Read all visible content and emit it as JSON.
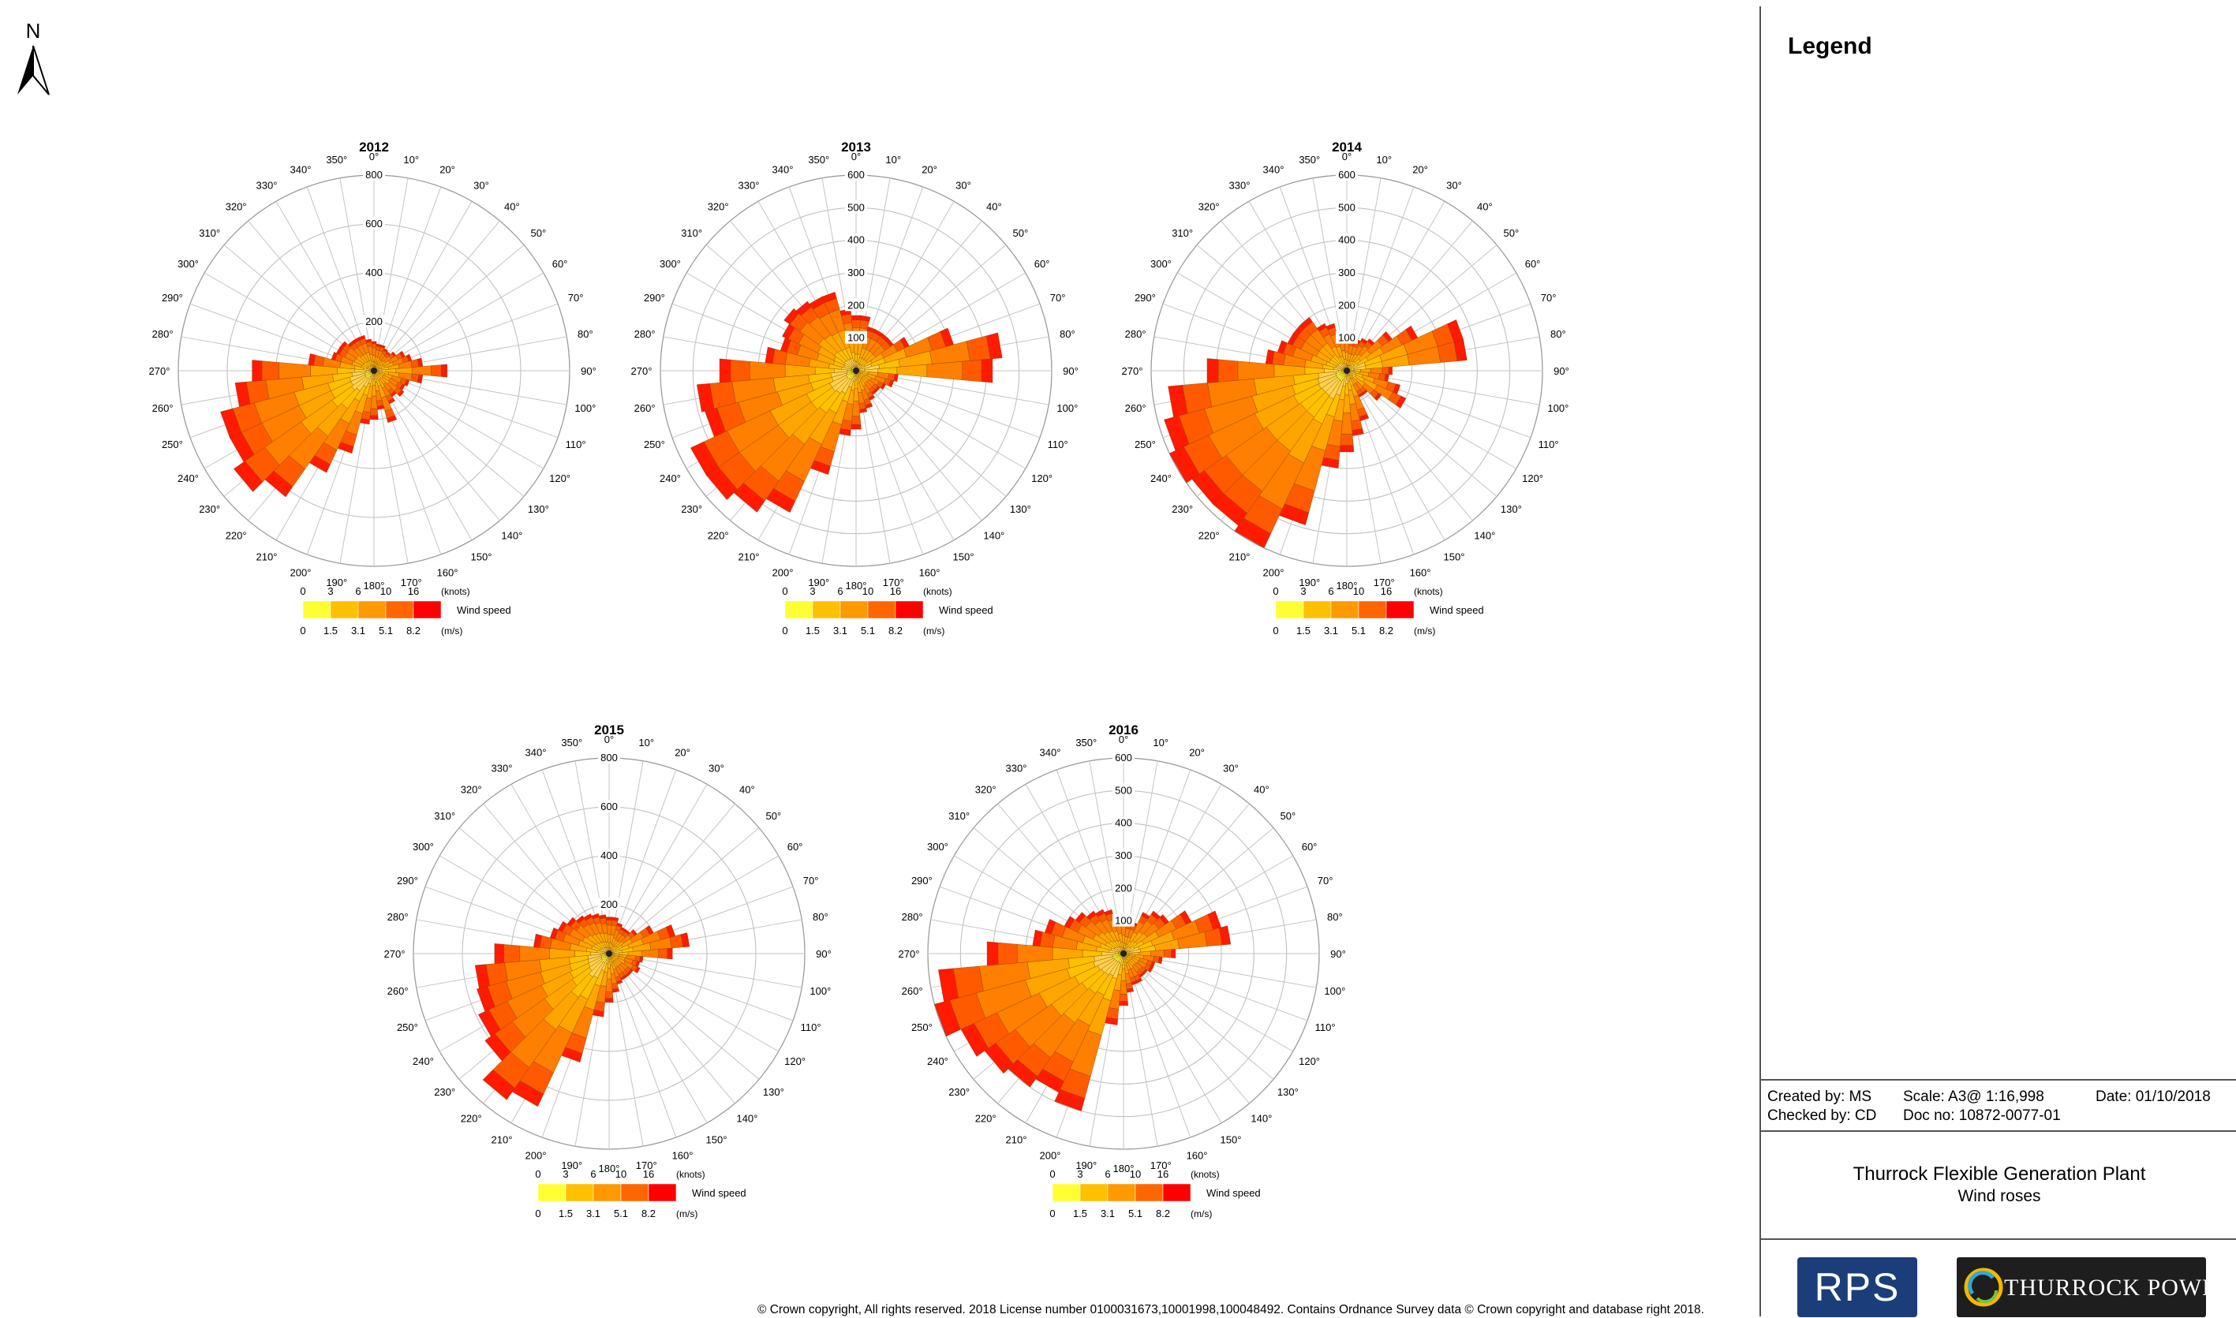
{
  "north_arrow": {
    "label": "N"
  },
  "legend": {
    "title": "Legend"
  },
  "info": {
    "created_by": "Created by: MS",
    "checked_by": "Checked by: CD",
    "scale": "Scale: A3@ 1:16,998",
    "doc_no": "Doc no: 10872-0077-01",
    "date": "Date: 01/10/2018"
  },
  "title_block": {
    "project": "Thurrock Flexible Generation Plant",
    "subtitle": "Wind roses"
  },
  "logos": {
    "rps": "RPS",
    "thurrock": "THURROCK POWER"
  },
  "copyright": "© Crown copyright, All rights reserved. 2018 License number 0100031673,10001998,100048492. Contains Ordnance Survey data © Crown copyright and database right 2018.",
  "wind_speed_legend": {
    "label": "Wind speed",
    "knots_ticks": [
      "0",
      "3",
      "6",
      "10",
      "16"
    ],
    "knots_unit": "(knots)",
    "ms_ticks": [
      "0",
      "1.5",
      "3.1",
      "5.1",
      "8.2"
    ],
    "ms_unit": "(m/s)",
    "colors": [
      "#ffff33",
      "#ffc000",
      "#ff9900",
      "#ff6600",
      "#ff0000"
    ]
  },
  "direction_labels": [
    "0°",
    "10°",
    "20°",
    "30°",
    "40°",
    "50°",
    "60°",
    "70°",
    "80°",
    "90°",
    "100°",
    "110°",
    "120°",
    "130°",
    "140°",
    "150°",
    "160°",
    "170°",
    "180°",
    "190°",
    "200°",
    "210°",
    "220°",
    "230°",
    "240°",
    "250°",
    "260°",
    "270°",
    "280°",
    "290°",
    "300°",
    "310°",
    "320°",
    "330°",
    "340°",
    "350°"
  ],
  "chart_data": [
    {
      "type": "wind-rose",
      "title": "2012",
      "rmax": 800,
      "ring_labels": [
        "200",
        "400",
        "600",
        "800"
      ],
      "directions_deg": [
        0,
        10,
        20,
        30,
        40,
        50,
        60,
        70,
        80,
        90,
        100,
        110,
        120,
        130,
        140,
        150,
        160,
        170,
        180,
        190,
        200,
        210,
        220,
        230,
        240,
        250,
        260,
        270,
        280,
        290,
        300,
        310,
        320,
        330,
        340,
        350
      ],
      "totals": [
        120,
        110,
        110,
        100,
        95,
        110,
        140,
        160,
        200,
        300,
        200,
        150,
        140,
        150,
        130,
        150,
        220,
        160,
        200,
        220,
        350,
        460,
        630,
        700,
        650,
        650,
        570,
        500,
        270,
        180,
        170,
        170,
        150,
        150,
        150,
        130
      ]
    },
    {
      "type": "wind-rose",
      "title": "2013",
      "rmax": 600,
      "ring_labels": [
        "100",
        "200",
        "300",
        "400",
        "500",
        "600"
      ],
      "directions_deg": [
        0,
        10,
        20,
        30,
        40,
        50,
        60,
        70,
        80,
        90,
        100,
        110,
        120,
        130,
        140,
        150,
        160,
        170,
        180,
        190,
        200,
        210,
        220,
        230,
        240,
        250,
        260,
        270,
        280,
        290,
        300,
        310,
        320,
        330,
        340,
        350
      ],
      "totals": [
        170,
        170,
        140,
        140,
        140,
        140,
        180,
        310,
        450,
        420,
        130,
        120,
        100,
        90,
        90,
        100,
        120,
        130,
        180,
        200,
        330,
        480,
        530,
        560,
        560,
        480,
        490,
        420,
        280,
        240,
        250,
        270,
        260,
        250,
        250,
        190
      ]
    },
    {
      "type": "wind-rose",
      "title": "2014",
      "rmax": 600,
      "ring_labels": [
        "100",
        "200",
        "300",
        "400",
        "500",
        "600"
      ],
      "directions_deg": [
        0,
        10,
        20,
        30,
        40,
        50,
        60,
        70,
        80,
        90,
        100,
        110,
        120,
        130,
        140,
        150,
        160,
        170,
        180,
        190,
        200,
        210,
        220,
        230,
        240,
        250,
        260,
        270,
        280,
        290,
        300,
        310,
        320,
        330,
        340,
        350
      ],
      "totals": [
        110,
        100,
        100,
        110,
        120,
        170,
        240,
        370,
        370,
        140,
        130,
        170,
        200,
        130,
        90,
        90,
        160,
        200,
        250,
        300,
        490,
        600,
        580,
        580,
        600,
        580,
        550,
        430,
        250,
        220,
        200,
        200,
        200,
        160,
        150,
        120
      ]
    },
    {
      "type": "wind-rose",
      "title": "2015",
      "rmax": 800,
      "ring_labels": [
        "200",
        "400",
        "600",
        "800"
      ],
      "directions_deg": [
        0,
        10,
        20,
        30,
        40,
        50,
        60,
        70,
        80,
        90,
        100,
        110,
        120,
        130,
        140,
        150,
        160,
        170,
        180,
        190,
        200,
        210,
        220,
        230,
        240,
        250,
        260,
        270,
        280,
        290,
        300,
        310,
        320,
        330,
        340,
        350
      ],
      "totals": [
        150,
        150,
        130,
        120,
        120,
        140,
        200,
        280,
        330,
        260,
        140,
        130,
        140,
        120,
        120,
        120,
        130,
        160,
        200,
        260,
        460,
        690,
        730,
        620,
        590,
        560,
        550,
        470,
        310,
        250,
        230,
        210,
        190,
        180,
        170,
        160
      ]
    },
    {
      "type": "wind-rose",
      "title": "2016",
      "rmax": 600,
      "ring_labels": [
        "100",
        "200",
        "300",
        "400",
        "500",
        "600"
      ],
      "directions_deg": [
        0,
        10,
        20,
        30,
        40,
        50,
        60,
        70,
        80,
        90,
        100,
        110,
        120,
        130,
        140,
        150,
        160,
        170,
        180,
        190,
        200,
        210,
        220,
        230,
        240,
        250,
        260,
        270,
        280,
        290,
        300,
        310,
        320,
        330,
        340,
        350
      ],
      "totals": [
        110,
        100,
        100,
        140,
        160,
        170,
        230,
        310,
        330,
        160,
        120,
        100,
        100,
        90,
        90,
        100,
        100,
        120,
        160,
        220,
        500,
        470,
        500,
        520,
        550,
        620,
        570,
        420,
        280,
        250,
        200,
        180,
        160,
        150,
        140,
        120
      ]
    }
  ]
}
